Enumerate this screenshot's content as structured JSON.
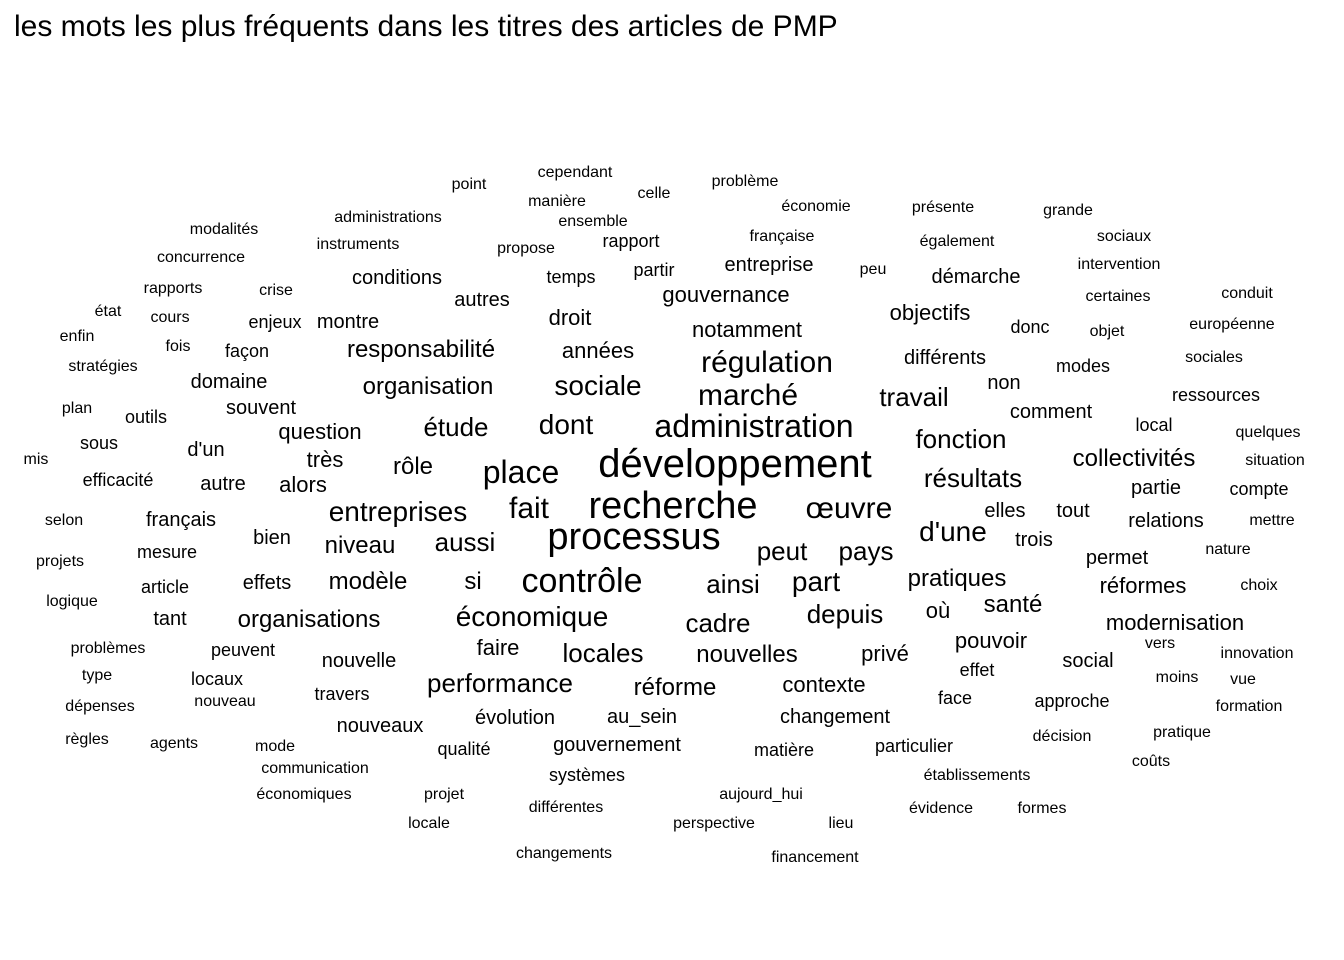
{
  "chart_data": {
    "type": "wordcloud",
    "title": "les mots les plus fréquents dans les titres des articles de PMP",
    "words": [
      {
        "text": "développement",
        "weight": 10
      },
      {
        "text": "recherche",
        "weight": 9.5
      },
      {
        "text": "processus",
        "weight": 9.5
      },
      {
        "text": "contrôle",
        "weight": 8.5
      },
      {
        "text": "administration",
        "weight": 8
      },
      {
        "text": "place",
        "weight": 8
      },
      {
        "text": "régulation",
        "weight": 7.5
      },
      {
        "text": "marché",
        "weight": 7.5
      },
      {
        "text": "œuvre",
        "weight": 7.5
      },
      {
        "text": "entreprises",
        "weight": 7
      },
      {
        "text": "fait",
        "weight": 7.5
      },
      {
        "text": "économique",
        "weight": 7
      },
      {
        "text": "sociale",
        "weight": 7
      },
      {
        "text": "dont",
        "weight": 7
      },
      {
        "text": "d'une",
        "weight": 7
      },
      {
        "text": "pays",
        "weight": 6.5
      },
      {
        "text": "peut",
        "weight": 6.5
      },
      {
        "text": "part",
        "weight": 7
      },
      {
        "text": "ainsi",
        "weight": 6.5
      },
      {
        "text": "organisation",
        "weight": 6
      },
      {
        "text": "responsabilité",
        "weight": 6
      },
      {
        "text": "étude",
        "weight": 6.5
      },
      {
        "text": "travail",
        "weight": 6.5
      },
      {
        "text": "fonction",
        "weight": 6.5
      },
      {
        "text": "résultats",
        "weight": 6.5
      },
      {
        "text": "collectivités",
        "weight": 6
      },
      {
        "text": "performance",
        "weight": 6.5
      },
      {
        "text": "locales",
        "weight": 6.5
      },
      {
        "text": "nouvelles",
        "weight": 6
      },
      {
        "text": "cadre",
        "weight": 6.5
      },
      {
        "text": "depuis",
        "weight": 6.5
      },
      {
        "text": "santé",
        "weight": 6
      },
      {
        "text": "aussi",
        "weight": 6.5
      },
      {
        "text": "niveau",
        "weight": 6
      },
      {
        "text": "organisations",
        "weight": 6
      },
      {
        "text": "modèle",
        "weight": 6
      },
      {
        "text": "si",
        "weight": 6
      },
      {
        "text": "rôle",
        "weight": 6
      },
      {
        "text": "question",
        "weight": 5.5
      },
      {
        "text": "très",
        "weight": 5.5
      },
      {
        "text": "alors",
        "weight": 5.5
      },
      {
        "text": "pratiques",
        "weight": 6
      },
      {
        "text": "modernisation",
        "weight": 5.5
      },
      {
        "text": "réforme",
        "weight": 6
      },
      {
        "text": "faire",
        "weight": 5.5
      },
      {
        "text": "contexte",
        "weight": 5.5
      },
      {
        "text": "privé",
        "weight": 5.5
      },
      {
        "text": "pouvoir",
        "weight": 5.5
      },
      {
        "text": "où",
        "weight": 5.5
      },
      {
        "text": "notamment",
        "weight": 5.5
      },
      {
        "text": "gouvernance",
        "weight": 5.5
      },
      {
        "text": "objectifs",
        "weight": 5.5
      },
      {
        "text": "différents",
        "weight": 5
      },
      {
        "text": "années",
        "weight": 5.5
      },
      {
        "text": "droit",
        "weight": 5.5
      },
      {
        "text": "réformes",
        "weight": 5.5
      },
      {
        "text": "permet",
        "weight": 5
      },
      {
        "text": "elles",
        "weight": 5
      },
      {
        "text": "tout",
        "weight": 5
      },
      {
        "text": "trois",
        "weight": 5
      },
      {
        "text": "changement",
        "weight": 5
      },
      {
        "text": "gouvernement",
        "weight": 5
      },
      {
        "text": "au_sein",
        "weight": 5
      },
      {
        "text": "évolution",
        "weight": 5
      },
      {
        "text": "social",
        "weight": 5
      },
      {
        "text": "nouvelle",
        "weight": 5
      },
      {
        "text": "entreprise",
        "weight": 5
      },
      {
        "text": "français",
        "weight": 5
      },
      {
        "text": "effets",
        "weight": 5
      },
      {
        "text": "autre",
        "weight": 5
      },
      {
        "text": "d'un",
        "weight": 5
      },
      {
        "text": "relations",
        "weight": 5
      },
      {
        "text": "partie",
        "weight": 5
      },
      {
        "text": "comment",
        "weight": 5
      },
      {
        "text": "non",
        "weight": 5
      },
      {
        "text": "souvent",
        "weight": 5
      },
      {
        "text": "domaine",
        "weight": 5
      },
      {
        "text": "démarche",
        "weight": 5
      },
      {
        "text": "autres",
        "weight": 5
      },
      {
        "text": "conditions",
        "weight": 5
      },
      {
        "text": "montre",
        "weight": 5
      },
      {
        "text": "mesure",
        "weight": 4.5
      },
      {
        "text": "bien",
        "weight": 5
      },
      {
        "text": "tant",
        "weight": 5
      },
      {
        "text": "nouveaux",
        "weight": 5
      },
      {
        "text": "travers",
        "weight": 4.5
      },
      {
        "text": "locaux",
        "weight": 4.5
      },
      {
        "text": "peuvent",
        "weight": 4.5
      },
      {
        "text": "qualité",
        "weight": 4.5
      },
      {
        "text": "effet",
        "weight": 4.5
      },
      {
        "text": "approche",
        "weight": 4.5
      },
      {
        "text": "face",
        "weight": 4.5
      },
      {
        "text": "particulier",
        "weight": 4.5
      },
      {
        "text": "matière",
        "weight": 4.5
      },
      {
        "text": "systèmes",
        "weight": 4.5
      },
      {
        "text": "partir",
        "weight": 4.5
      },
      {
        "text": "temps",
        "weight": 4.5
      },
      {
        "text": "rapport",
        "weight": 4.5
      },
      {
        "text": "enjeux",
        "weight": 4.5
      },
      {
        "text": "façon",
        "weight": 4.5
      },
      {
        "text": "outils",
        "weight": 4.5
      },
      {
        "text": "sous",
        "weight": 4.5
      },
      {
        "text": "efficacité",
        "weight": 4.5
      },
      {
        "text": "article",
        "weight": 4.5
      },
      {
        "text": "donc",
        "weight": 4.5
      },
      {
        "text": "modes",
        "weight": 4.5
      },
      {
        "text": "local",
        "weight": 4.5
      },
      {
        "text": "ressources",
        "weight": 4.5
      },
      {
        "text": "compte",
        "weight": 4.5
      },
      {
        "text": "mettre",
        "weight": 4
      },
      {
        "text": "nature",
        "weight": 4
      },
      {
        "text": "choix",
        "weight": 4
      },
      {
        "text": "vers",
        "weight": 4
      },
      {
        "text": "innovation",
        "weight": 4
      },
      {
        "text": "moins",
        "weight": 4
      },
      {
        "text": "vue",
        "weight": 4
      },
      {
        "text": "formation",
        "weight": 4
      },
      {
        "text": "pratique",
        "weight": 4
      },
      {
        "text": "décision",
        "weight": 4
      },
      {
        "text": "coûts",
        "weight": 4
      },
      {
        "text": "établissements",
        "weight": 4
      },
      {
        "text": "évidence",
        "weight": 4
      },
      {
        "text": "formes",
        "weight": 4
      },
      {
        "text": "lieu",
        "weight": 4
      },
      {
        "text": "aujourd_hui",
        "weight": 4
      },
      {
        "text": "perspective",
        "weight": 4
      },
      {
        "text": "financement",
        "weight": 4
      },
      {
        "text": "changements",
        "weight": 4
      },
      {
        "text": "différentes",
        "weight": 4
      },
      {
        "text": "projet",
        "weight": 4
      },
      {
        "text": "locale",
        "weight": 4
      },
      {
        "text": "économiques",
        "weight": 4
      },
      {
        "text": "communication",
        "weight": 4
      },
      {
        "text": "mode",
        "weight": 4
      },
      {
        "text": "agents",
        "weight": 4
      },
      {
        "text": "règles",
        "weight": 4
      },
      {
        "text": "dépenses",
        "weight": 4
      },
      {
        "text": "nouveau",
        "weight": 4
      },
      {
        "text": "type",
        "weight": 4
      },
      {
        "text": "problèmes",
        "weight": 4
      },
      {
        "text": "logique",
        "weight": 4
      },
      {
        "text": "projets",
        "weight": 4
      },
      {
        "text": "selon",
        "weight": 4
      },
      {
        "text": "mis",
        "weight": 4
      },
      {
        "text": "plan",
        "weight": 4
      },
      {
        "text": "stratégies",
        "weight": 4
      },
      {
        "text": "enfin",
        "weight": 4
      },
      {
        "text": "état",
        "weight": 4
      },
      {
        "text": "cours",
        "weight": 4
      },
      {
        "text": "fois",
        "weight": 4
      },
      {
        "text": "rapports",
        "weight": 4
      },
      {
        "text": "crise",
        "weight": 4
      },
      {
        "text": "concurrence",
        "weight": 4
      },
      {
        "text": "modalités",
        "weight": 4
      },
      {
        "text": "administrations",
        "weight": 4
      },
      {
        "text": "instruments",
        "weight": 4
      },
      {
        "text": "propose",
        "weight": 4
      },
      {
        "text": "ensemble",
        "weight": 4
      },
      {
        "text": "manière",
        "weight": 4
      },
      {
        "text": "point",
        "weight": 4
      },
      {
        "text": "cependant",
        "weight": 4
      },
      {
        "text": "celle",
        "weight": 4
      },
      {
        "text": "problème",
        "weight": 4
      },
      {
        "text": "économie",
        "weight": 4
      },
      {
        "text": "présente",
        "weight": 4
      },
      {
        "text": "grande",
        "weight": 4
      },
      {
        "text": "française",
        "weight": 4
      },
      {
        "text": "également",
        "weight": 4
      },
      {
        "text": "sociaux",
        "weight": 4
      },
      {
        "text": "peu",
        "weight": 4
      },
      {
        "text": "intervention",
        "weight": 4
      },
      {
        "text": "certaines",
        "weight": 4
      },
      {
        "text": "conduit",
        "weight": 4
      },
      {
        "text": "objet",
        "weight": 4
      },
      {
        "text": "européenne",
        "weight": 4
      },
      {
        "text": "sociales",
        "weight": 4
      },
      {
        "text": "quelques",
        "weight": 4
      },
      {
        "text": "situation",
        "weight": 4
      }
    ]
  }
}
